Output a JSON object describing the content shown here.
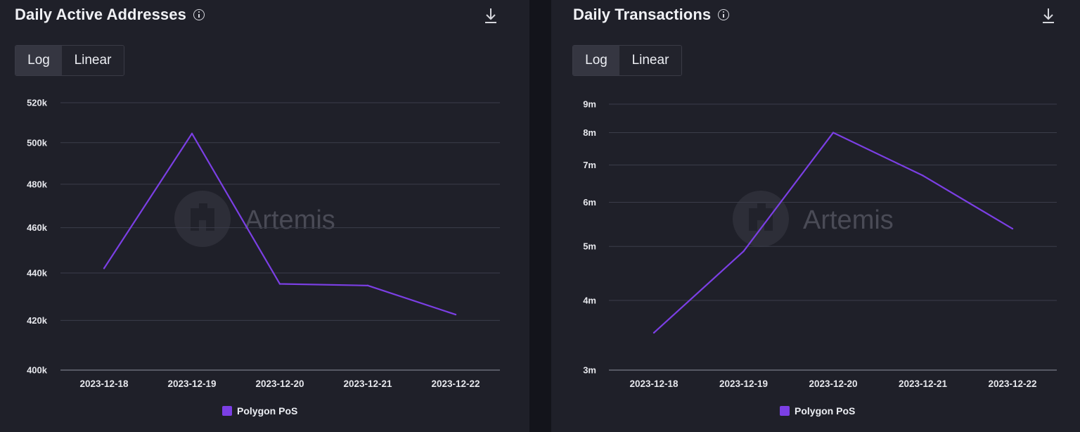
{
  "panels": [
    {
      "title": "Daily Active Addresses",
      "toggle": {
        "log": "Log",
        "linear": "Linear"
      },
      "legend": "Polygon PoS",
      "watermark": "Artemis"
    },
    {
      "title": "Daily Transactions",
      "toggle": {
        "log": "Log",
        "linear": "Linear"
      },
      "legend": "Polygon PoS",
      "watermark": "Artemis"
    }
  ],
  "colors": {
    "series": "#7b3fe4",
    "grid": "#3b3d4a",
    "axis": "#6a6c78",
    "tick_text": "#e6e7ec"
  },
  "chart_data": [
    {
      "type": "line",
      "title": "Daily Active Addresses",
      "scale": "log",
      "x": [
        "2023-12-18",
        "2023-12-19",
        "2023-12-20",
        "2023-12-21",
        "2023-12-22"
      ],
      "series": [
        {
          "name": "Polygon PoS",
          "values": [
            442000,
            504500,
            435300,
            434600,
            422400
          ]
        }
      ],
      "yticks": [
        400000,
        420000,
        440000,
        460000,
        480000,
        500000,
        520000
      ],
      "ytick_labels": [
        "400k",
        "420k",
        "440k",
        "460k",
        "480k",
        "500k",
        "520k"
      ],
      "ylim": [
        400000,
        520000
      ],
      "legend": "bottom"
    },
    {
      "type": "line",
      "title": "Daily Transactions",
      "scale": "log",
      "x": [
        "2023-12-18",
        "2023-12-19",
        "2023-12-20",
        "2023-12-21",
        "2023-12-22"
      ],
      "series": [
        {
          "name": "Polygon PoS",
          "values": [
            3500000,
            4900000,
            8000000,
            6700000,
            5380000
          ]
        }
      ],
      "yticks": [
        3000000,
        4000000,
        5000000,
        6000000,
        7000000,
        8000000,
        9000000
      ],
      "ytick_labels": [
        "3m",
        "4m",
        "5m",
        "6m",
        "7m",
        "8m",
        "9m"
      ],
      "ylim": [
        3000000,
        9000000
      ],
      "legend": "bottom"
    }
  ]
}
